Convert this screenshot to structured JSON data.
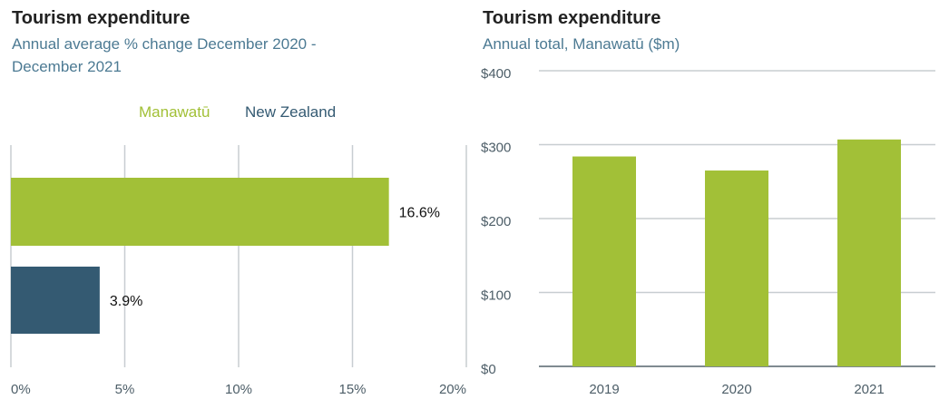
{
  "colors": {
    "green": "#a2c037",
    "navy": "#345a72",
    "grid": "#c8cdd1",
    "axis_text": "#4d5e68",
    "value_text": "#111111",
    "subtitle": "#4c7a93"
  },
  "left_chart": {
    "title": "Tourism expenditure",
    "subtitle": "Annual average % change December 2020 - December 2021",
    "legend": [
      "Manawatū",
      "New Zealand"
    ],
    "value_labels": [
      "16.6%",
      "3.9%"
    ],
    "tick_labels": [
      "0%",
      "5%",
      "10%",
      "15%",
      "20%"
    ]
  },
  "right_chart": {
    "title": "Tourism expenditure",
    "subtitle": "Annual total, Manawatū ($m)",
    "tick_labels": [
      "$400",
      "$300",
      "$200",
      "$100",
      "$0"
    ]
  },
  "chart_data": [
    {
      "type": "bar",
      "orientation": "horizontal",
      "title": "Tourism expenditure",
      "subtitle": "Annual average % change December 2020 - December 2021",
      "categories": [
        "Manawatū",
        "New Zealand"
      ],
      "values": [
        16.6,
        3.9
      ],
      "xlim": [
        0,
        20
      ],
      "xticks": [
        0,
        5,
        10,
        15,
        20
      ],
      "legend": "top",
      "grid": true
    },
    {
      "type": "bar",
      "orientation": "vertical",
      "title": "Tourism expenditure",
      "subtitle": "Annual total, Manawatū ($m)",
      "categories": [
        "2019",
        "2020",
        "2021"
      ],
      "values": [
        284,
        265,
        307
      ],
      "ylim": [
        0,
        400
      ],
      "yticks": [
        0,
        100,
        200,
        300,
        400
      ],
      "grid": true
    }
  ]
}
